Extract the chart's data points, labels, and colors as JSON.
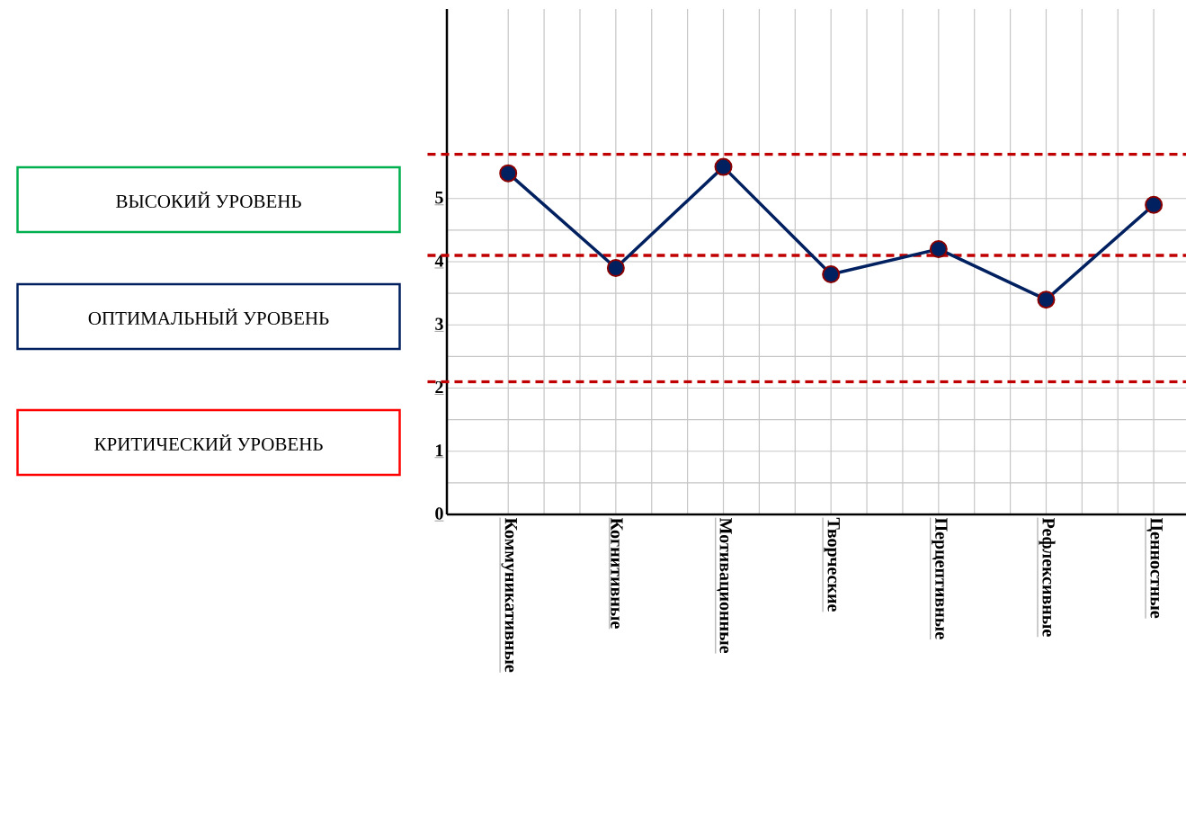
{
  "chart_data": {
    "type": "line",
    "categories": [
      "Коммуникативные",
      "Когнитивные",
      "Мотивационные",
      "Творческие",
      "Перцептивные",
      "Рефлексивные",
      "Ценностные"
    ],
    "series": [
      {
        "color": "#002060",
        "values": [
          5.4,
          3.9,
          5.5,
          3.8,
          4.2,
          3.4,
          4.9
        ]
      }
    ],
    "ylim": [
      0,
      8
    ],
    "yticks": [
      0,
      1,
      2,
      3,
      4,
      5
    ],
    "ref_lines": [
      {
        "axis": "y",
        "value": 5.7,
        "color": "#c00000",
        "line_style": "dashed"
      },
      {
        "axis": "y",
        "value": 4.1,
        "color": "#c00000",
        "line_style": "dashed"
      },
      {
        "axis": "y",
        "value": 2.1,
        "color": "#c00000",
        "line_style": "dashed"
      }
    ],
    "annotations": [
      "ВЫСОКИЙ УРОВЕНЬ",
      "ОПТИМАЛЬНЫЙ УРОВЕНЬ",
      "КРИТИЧЕСКИЙ УРОВЕНЬ"
    ],
    "grid": true,
    "marker": "circle",
    "line_style": "solid"
  }
}
